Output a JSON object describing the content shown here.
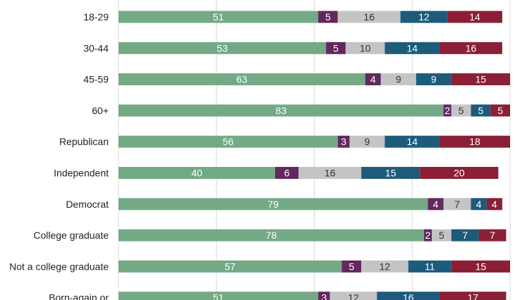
{
  "chart_data": {
    "type": "bar",
    "orientation": "horizontal",
    "stacked": true,
    "categories": [
      "18-29",
      "30-44",
      "45-59",
      "60+",
      "Republican",
      "Independent",
      "Democrat",
      "College graduate",
      "Not a college graduate",
      "Born-again or"
    ],
    "series": [
      {
        "values": [
          51,
          53,
          63,
          83,
          56,
          40,
          79,
          78,
          57,
          51
        ],
        "color": "#74a986",
        "label_color": "#ffffff"
      },
      {
        "values": [
          5,
          5,
          4,
          2,
          3,
          6,
          4,
          2,
          5,
          3
        ],
        "color": "#62285f",
        "label_color": "#ffffff"
      },
      {
        "values": [
          16,
          10,
          9,
          5,
          9,
          16,
          7,
          5,
          12,
          12
        ],
        "color": "#c4c4c4",
        "label_color": "#333333"
      },
      {
        "values": [
          12,
          14,
          9,
          5,
          14,
          15,
          4,
          7,
          11,
          16
        ],
        "color": "#1d5b7b",
        "label_color": "#ffffff"
      },
      {
        "values": [
          14,
          16,
          15,
          5,
          18,
          20,
          4,
          7,
          15,
          17
        ],
        "color": "#8a1f35",
        "label_color": "#ffffff"
      }
    ],
    "grid": true,
    "legend": "none"
  }
}
